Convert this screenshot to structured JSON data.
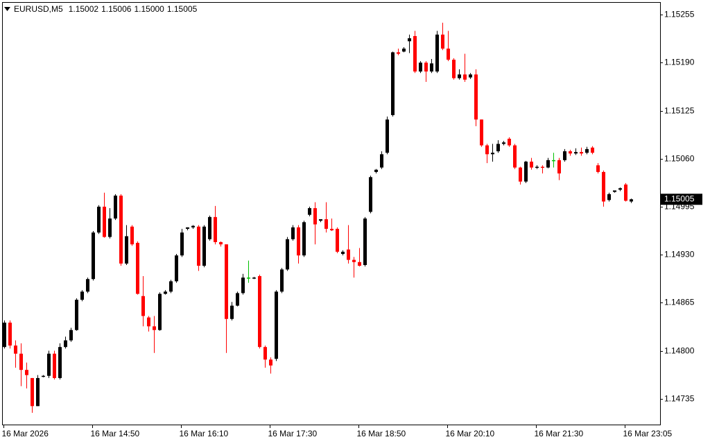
{
  "chart_data": {
    "type": "candlestick",
    "title": "EURUSD,M5",
    "header_values": [
      "1.15002",
      "1.15006",
      "1.15000",
      "1.15005"
    ],
    "up_color": "#000000",
    "down_color": "#ff0000",
    "doji_color": "#00c000",
    "ylim": [
      1.147,
      1.15272
    ],
    "yticks": [
      1.14735,
      {
        "value": 1.148,
        "label": "1.14800"
      },
      1.14865,
      {
        "value": 1.1493,
        "label": "1.14930"
      },
      1.14995,
      {
        "value": 1.1506,
        "label": "1.15060"
      },
      1.15125,
      {
        "value": 1.1519,
        "label": "1.15190"
      },
      1.15255
    ],
    "grid": false,
    "categories": [
      "16 Mar 2026",
      null,
      null,
      null,
      null,
      null,
      null,
      null,
      null,
      null,
      null,
      null,
      null,
      null,
      null,
      null,
      "16 Mar 14:50",
      null,
      null,
      null,
      null,
      null,
      null,
      null,
      null,
      null,
      null,
      null,
      null,
      null,
      null,
      null,
      "16 Mar 16:10",
      null,
      null,
      null,
      null,
      null,
      null,
      null,
      null,
      null,
      null,
      null,
      null,
      null,
      null,
      null,
      "16 Mar 17:30",
      null,
      null,
      null,
      null,
      null,
      null,
      null,
      null,
      null,
      null,
      null,
      null,
      null,
      null,
      null,
      "16 Mar 18:50",
      null,
      null,
      null,
      null,
      null,
      null,
      null,
      null,
      null,
      null,
      null,
      null,
      null,
      null,
      null,
      "16 Mar 20:10",
      null,
      null,
      null,
      null,
      null,
      null,
      null,
      null,
      null,
      null,
      null,
      null,
      null,
      null,
      null,
      "16 Mar 21:30",
      null,
      null,
      null,
      null,
      null,
      null,
      null,
      null,
      null,
      null,
      null,
      null,
      null,
      null,
      null,
      "16 Mar 23:05",
      null
    ],
    "open": [
      1.14805,
      1.14838,
      1.14807,
      1.14796,
      1.14774,
      1.14763,
      1.14725,
      1.14765,
      1.14766,
      1.14796,
      1.14763,
      1.14805,
      1.14814,
      1.14828,
      1.14869,
      1.1488,
      1.14897,
      1.1496,
      1.14995,
      1.14954,
      1.14979,
      1.1501,
      1.14918,
      1.14968,
      1.14946,
      1.14874,
      1.14845,
      1.14833,
      1.14828,
      1.14877,
      1.1488,
      1.14894,
      1.14929,
      1.14965,
      1.14967,
      1.14968,
      1.14915,
      1.14951,
      1.14981,
      1.14947,
      1.14944,
      1.14843,
      1.14861,
      1.14878,
      1.14899,
      1.14898,
      1.14901,
      1.14805,
      1.14788,
      1.14789,
      1.1488,
      1.1491,
      1.14951,
      1.14967,
      1.14929,
      1.14984,
      1.14993,
      1.14976,
      1.14978,
      1.14965,
      1.14965,
      1.14931,
      1.14937,
      1.14923,
      1.1492,
      1.14916,
      1.14988,
      1.15042,
      1.15048,
      1.15068,
      1.15119,
      1.15204,
      1.15205,
      1.15219,
      1.15226,
      1.15178,
      1.1519,
      1.15178,
      1.15178,
      1.15228,
      1.15209,
      1.15194,
      1.15169,
      1.15174,
      1.1517,
      1.15174,
      1.15113,
      1.15078,
      1.15066,
      1.1507,
      1.1508,
      1.15087,
      1.15078,
      1.15048,
      1.15029,
      1.15056,
      1.15048,
      1.15049,
      1.15048,
      1.15058,
      1.15058,
      1.15058,
      1.1507,
      1.15067,
      1.15069,
      1.15068,
      1.15075,
      1.15051,
      1.15042,
      1.15004,
      1.15015,
      1.15018,
      1.15025,
      1.15002
    ],
    "high": [
      1.14841,
      1.14841,
      1.14814,
      1.1481,
      1.14784,
      1.14763,
      1.14767,
      1.14767,
      1.148,
      1.148,
      1.1481,
      1.14819,
      1.14831,
      1.14871,
      1.14882,
      1.14899,
      1.14962,
      1.14997,
      1.15014,
      1.14993,
      1.15012,
      1.15012,
      1.1497,
      1.1497,
      1.14948,
      1.14901,
      1.14847,
      1.14847,
      1.14879,
      1.14882,
      1.14896,
      1.14931,
      1.14965,
      1.14967,
      1.1497,
      1.1497,
      1.1497,
      1.14983,
      1.14996,
      1.14948,
      1.14944,
      1.14866,
      1.1488,
      1.14904,
      1.14922,
      1.149,
      1.14903,
      1.14807,
      1.14791,
      1.14882,
      1.14912,
      1.14954,
      1.1497,
      1.1497,
      1.14976,
      1.14995,
      1.15001,
      1.14978,
      1.15001,
      1.14979,
      1.14967,
      1.14936,
      1.1497,
      1.14927,
      1.14939,
      1.14981,
      1.15037,
      1.15046,
      1.1507,
      1.15117,
      1.15205,
      1.15209,
      1.15211,
      1.15228,
      1.15233,
      1.15192,
      1.15192,
      1.15195,
      1.15233,
      1.15244,
      1.15233,
      1.15196,
      1.15181,
      1.15202,
      1.15176,
      1.15181,
      1.15113,
      1.1508,
      1.1508,
      1.15085,
      1.15084,
      1.15089,
      1.1508,
      1.15049,
      1.15057,
      1.15061,
      1.15051,
      1.15051,
      1.15061,
      1.15068,
      1.15061,
      1.15073,
      1.15072,
      1.15074,
      1.15075,
      1.15076,
      1.15077,
      1.15054,
      1.15044,
      1.15014,
      1.15017,
      1.15021,
      1.15027,
      1.15006
    ],
    "low": [
      1.14803,
      1.14803,
      1.14777,
      1.14752,
      1.14749,
      1.14716,
      1.14725,
      1.14764,
      1.14763,
      1.14761,
      1.14761,
      1.14803,
      1.14812,
      1.14827,
      1.14867,
      1.14878,
      1.14895,
      1.14958,
      1.14953,
      1.14952,
      1.14977,
      1.14915,
      1.14916,
      1.14942,
      1.14876,
      1.14833,
      1.14826,
      1.14797,
      1.14827,
      1.14876,
      1.14878,
      1.14892,
      1.14927,
      1.14963,
      1.14965,
      1.14908,
      1.14913,
      1.14949,
      1.14944,
      1.14941,
      1.14797,
      1.14841,
      1.1486,
      1.14876,
      1.14892,
      1.14897,
      1.14803,
      1.14777,
      1.14769,
      1.14786,
      1.14878,
      1.14908,
      1.14949,
      1.14918,
      1.14927,
      1.14982,
      1.14944,
      1.14974,
      1.1496,
      1.14962,
      1.14932,
      1.14929,
      1.14918,
      1.14899,
      1.14914,
      1.14914,
      1.14986,
      1.1504,
      1.15046,
      1.15066,
      1.15117,
      1.152,
      1.15204,
      1.15203,
      1.15176,
      1.15176,
      1.15164,
      1.15176,
      1.15176,
      1.15207,
      1.15192,
      1.15167,
      1.15167,
      1.15164,
      1.15168,
      1.15104,
      1.15076,
      1.15054,
      1.15056,
      1.15068,
      1.15078,
      1.15076,
      1.15046,
      1.15025,
      1.15027,
      1.15045,
      1.15046,
      1.1504,
      1.15047,
      1.15048,
      1.15031,
      1.15056,
      1.15064,
      1.15065,
      1.15064,
      1.15066,
      1.15066,
      1.1504,
      1.14995,
      1.15002,
      1.15014,
      1.15016,
      1.15002,
      1.15
    ],
    "close": [
      1.14838,
      1.14807,
      1.14796,
      1.14774,
      1.14767,
      1.14725,
      1.14763,
      1.14766,
      1.14796,
      1.14763,
      1.14805,
      1.14814,
      1.14828,
      1.14869,
      1.1488,
      1.14897,
      1.1496,
      1.14995,
      1.14954,
      1.14979,
      1.1501,
      1.14918,
      1.14955,
      1.14944,
      1.14877,
      1.14847,
      1.14833,
      1.14828,
      1.14877,
      1.1488,
      1.14894,
      1.14929,
      1.1496,
      1.14967,
      1.14969,
      1.14915,
      1.14968,
      1.14981,
      1.14947,
      1.14944,
      1.14843,
      1.14861,
      1.14878,
      1.14899,
      1.14899,
      1.14899,
      1.14805,
      1.14788,
      1.1478,
      1.1488,
      1.1491,
      1.14951,
      1.14967,
      1.14929,
      1.14974,
      1.14993,
      1.14971,
      1.14978,
      1.14965,
      1.14963,
      1.14934,
      1.14934,
      1.14923,
      1.1492,
      1.14915,
      1.14979,
      1.15035,
      1.15045,
      1.15066,
      1.15113,
      1.15204,
      1.15202,
      1.15209,
      1.15223,
      1.15178,
      1.1519,
      1.15178,
      1.15189,
      1.15228,
      1.15209,
      1.15194,
      1.15169,
      1.15174,
      1.15167,
      1.15174,
      1.15113,
      1.15078,
      1.15066,
      1.15068,
      1.1508,
      1.15082,
      1.15078,
      1.15048,
      1.15029,
      1.15056,
      1.15048,
      1.15049,
      1.15048,
      1.15058,
      1.15058,
      1.1504,
      1.1507,
      1.15067,
      1.15069,
      1.15067,
      1.15073,
      1.15068,
      1.15042,
      1.15002,
      1.15012,
      1.15017,
      1.1502,
      1.15003,
      1.15005
    ]
  }
}
